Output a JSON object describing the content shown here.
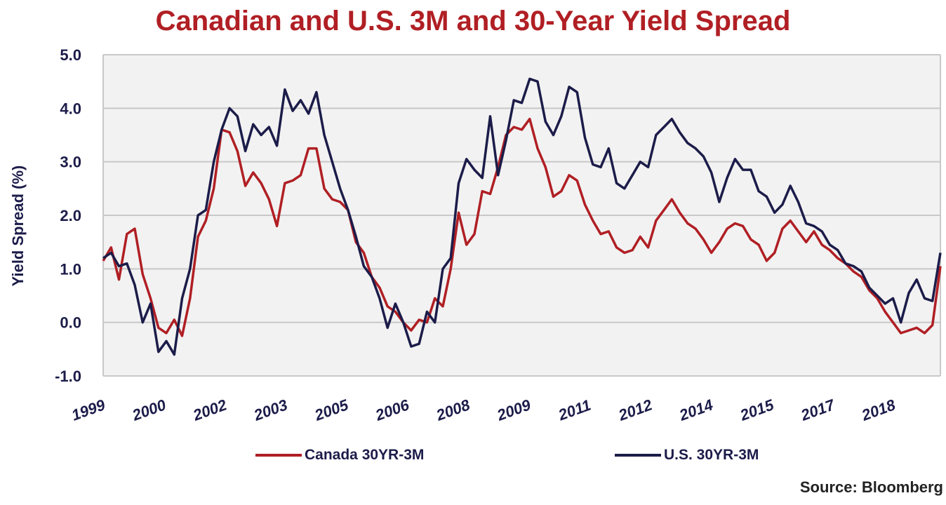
{
  "chart_data": {
    "type": "line",
    "title": "Canadian and U.S. 3M and 30-Year Yield Spread",
    "ylabel": "Yield Spread (%)",
    "xlabel": "",
    "ylim": [
      -1.0,
      5.0
    ],
    "yticks": [
      "5.0",
      "4.0",
      "3.0",
      "2.0",
      "1.0",
      "0.0",
      "-1.0"
    ],
    "xticks": [
      "1999",
      "2000",
      "2002",
      "2003",
      "2005",
      "2006",
      "2008",
      "2009",
      "2011",
      "2012",
      "2014",
      "2015",
      "2017",
      "2018"
    ],
    "grid": true,
    "legend_position": "bottom",
    "series": [
      {
        "name": "Canada 30YR-3M",
        "color": "#b01f24",
        "x": [
          1999.0,
          1999.2,
          1999.4,
          1999.6,
          1999.8,
          2000.0,
          2000.2,
          2000.4,
          2000.6,
          2000.8,
          2001.0,
          2001.2,
          2001.4,
          2001.6,
          2001.8,
          2002.0,
          2002.2,
          2002.4,
          2002.6,
          2002.8,
          2003.0,
          2003.2,
          2003.4,
          2003.6,
          2003.8,
          2004.0,
          2004.2,
          2004.4,
          2004.6,
          2004.8,
          2005.0,
          2005.2,
          2005.4,
          2005.6,
          2005.8,
          2006.0,
          2006.2,
          2006.4,
          2006.6,
          2006.8,
          2007.0,
          2007.2,
          2007.4,
          2007.6,
          2007.8,
          2008.0,
          2008.2,
          2008.4,
          2008.6,
          2008.8,
          2009.0,
          2009.2,
          2009.4,
          2009.6,
          2009.8,
          2010.0,
          2010.2,
          2010.4,
          2010.6,
          2010.8,
          2011.0,
          2011.2,
          2011.4,
          2011.6,
          2011.8,
          2012.0,
          2012.2,
          2012.4,
          2012.6,
          2012.8,
          2013.0,
          2013.2,
          2013.4,
          2013.6,
          2013.8,
          2014.0,
          2014.2,
          2014.4,
          2014.6,
          2014.8,
          2015.0,
          2015.2,
          2015.4,
          2015.6,
          2015.8,
          2016.0,
          2016.2,
          2016.4,
          2016.6,
          2016.8,
          2017.0,
          2017.2,
          2017.4,
          2017.6,
          2017.8,
          2018.0,
          2018.2,
          2018.4,
          2018.6,
          2018.8,
          2019.0,
          2019.2,
          2019.4,
          2019.6,
          2019.8,
          2020.0,
          2020.2
        ],
        "values": [
          1.15,
          1.4,
          0.8,
          1.65,
          1.75,
          0.9,
          0.45,
          -0.1,
          -0.2,
          0.05,
          -0.25,
          0.45,
          1.6,
          1.9,
          2.5,
          3.6,
          3.55,
          3.2,
          2.55,
          2.8,
          2.6,
          2.3,
          1.8,
          2.6,
          2.65,
          2.75,
          3.25,
          3.25,
          2.5,
          2.3,
          2.25,
          2.1,
          1.5,
          1.3,
          0.85,
          0.65,
          0.3,
          0.2,
          0.0,
          -0.15,
          0.05,
          0.0,
          0.45,
          0.3,
          1.0,
          2.05,
          1.45,
          1.65,
          2.45,
          2.4,
          2.9,
          3.5,
          3.65,
          3.6,
          3.8,
          3.25,
          2.9,
          2.35,
          2.45,
          2.75,
          2.65,
          2.2,
          1.9,
          1.65,
          1.7,
          1.4,
          1.3,
          1.35,
          1.6,
          1.4,
          1.9,
          2.1,
          2.3,
          2.05,
          1.85,
          1.75,
          1.55,
          1.3,
          1.5,
          1.75,
          1.85,
          1.8,
          1.55,
          1.45,
          1.15,
          1.3,
          1.75,
          1.9,
          1.7,
          1.5,
          1.7,
          1.45,
          1.35,
          1.2,
          1.1,
          0.95,
          0.85,
          0.6,
          0.45,
          0.2,
          0.0,
          -0.2,
          -0.15,
          -0.1,
          -0.2,
          -0.05,
          1.05
        ]
      },
      {
        "name": "U.S. 30YR-3M",
        "color": "#1c1c4a",
        "x": [
          1999.0,
          1999.2,
          1999.4,
          1999.6,
          1999.8,
          2000.0,
          2000.2,
          2000.4,
          2000.6,
          2000.8,
          2001.0,
          2001.2,
          2001.4,
          2001.6,
          2001.8,
          2002.0,
          2002.2,
          2002.4,
          2002.6,
          2002.8,
          2003.0,
          2003.2,
          2003.4,
          2003.6,
          2003.8,
          2004.0,
          2004.2,
          2004.4,
          2004.6,
          2004.8,
          2005.0,
          2005.2,
          2005.4,
          2005.6,
          2005.8,
          2006.0,
          2006.2,
          2006.4,
          2006.6,
          2006.8,
          2007.0,
          2007.2,
          2007.4,
          2007.6,
          2007.8,
          2008.0,
          2008.2,
          2008.4,
          2008.6,
          2008.8,
          2009.0,
          2009.2,
          2009.4,
          2009.6,
          2009.8,
          2010.0,
          2010.2,
          2010.4,
          2010.6,
          2010.8,
          2011.0,
          2011.2,
          2011.4,
          2011.6,
          2011.8,
          2012.0,
          2012.2,
          2012.4,
          2012.6,
          2012.8,
          2013.0,
          2013.2,
          2013.4,
          2013.6,
          2013.8,
          2014.0,
          2014.2,
          2014.4,
          2014.6,
          2014.8,
          2015.0,
          2015.2,
          2015.4,
          2015.6,
          2015.8,
          2016.0,
          2016.2,
          2016.4,
          2016.6,
          2016.8,
          2017.0,
          2017.2,
          2017.4,
          2017.6,
          2017.8,
          2018.0,
          2018.2,
          2018.4,
          2018.6,
          2018.8,
          2019.0,
          2019.2,
          2019.4,
          2019.6,
          2019.8,
          2020.0,
          2020.2
        ],
        "values": [
          1.2,
          1.3,
          1.05,
          1.1,
          0.7,
          0.0,
          0.35,
          -0.55,
          -0.35,
          -0.6,
          0.45,
          1.0,
          2.0,
          2.1,
          3.0,
          3.6,
          4.0,
          3.85,
          3.2,
          3.7,
          3.5,
          3.65,
          3.3,
          4.35,
          3.95,
          4.15,
          3.9,
          4.3,
          3.5,
          3.0,
          2.5,
          2.1,
          1.6,
          1.05,
          0.85,
          0.45,
          -0.1,
          0.35,
          0.0,
          -0.45,
          -0.4,
          0.2,
          0.0,
          1.0,
          1.2,
          2.6,
          3.05,
          2.85,
          2.7,
          3.85,
          2.75,
          3.4,
          4.15,
          4.1,
          4.55,
          4.5,
          3.75,
          3.5,
          3.85,
          4.4,
          4.3,
          3.45,
          2.95,
          2.9,
          3.25,
          2.6,
          2.5,
          2.75,
          3.0,
          2.9,
          3.5,
          3.65,
          3.8,
          3.55,
          3.35,
          3.25,
          3.1,
          2.8,
          2.25,
          2.7,
          3.05,
          2.85,
          2.85,
          2.45,
          2.35,
          2.05,
          2.2,
          2.55,
          2.25,
          1.85,
          1.8,
          1.7,
          1.45,
          1.35,
          1.1,
          1.05,
          0.95,
          0.65,
          0.5,
          0.35,
          0.45,
          0.0,
          0.55,
          0.8,
          0.45,
          0.4,
          1.3
        ]
      }
    ]
  },
  "source": "Source: Bloomberg"
}
